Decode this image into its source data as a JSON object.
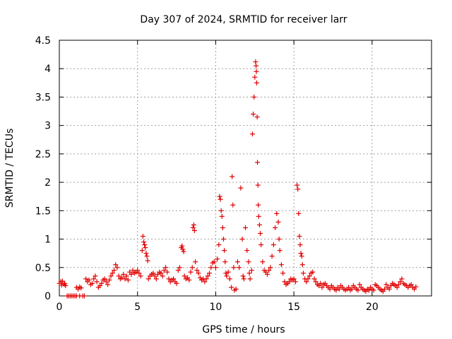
{
  "chart_data": {
    "type": "scatter",
    "title": "Day 307 of 2024, SRMTID for receiver larr",
    "xlabel": "GPS time / hours",
    "ylabel": "SRMTID / TECUs",
    "xlim": [
      0,
      23.8
    ],
    "ylim": [
      0,
      4.5
    ],
    "x_ticks": [
      "0",
      "5",
      "10",
      "15",
      "20"
    ],
    "y_ticks": [
      "0",
      "0.5",
      "1",
      "1.5",
      "2",
      "2.5",
      "3",
      "3.5",
      "4",
      "4.5"
    ],
    "grid": true,
    "marker": "plus",
    "color": "#e00000",
    "series": [
      {
        "name": "SRMTID",
        "points": [
          [
            0.0,
            0.22
          ],
          [
            0.1,
            0.25
          ],
          [
            0.15,
            0.19
          ],
          [
            0.2,
            0.26
          ],
          [
            0.3,
            0.2
          ],
          [
            0.35,
            0.22
          ],
          [
            0.4,
            0.18
          ],
          [
            0.5,
            0.0
          ],
          [
            0.6,
            0.0
          ],
          [
            0.7,
            0.0
          ],
          [
            0.8,
            0.0
          ],
          [
            0.9,
            0.0
          ],
          [
            1.0,
            0.0
          ],
          [
            1.1,
            0.0
          ],
          [
            1.3,
            0.0
          ],
          [
            1.5,
            0.0
          ],
          [
            1.6,
            0.0
          ],
          [
            1.1,
            0.15
          ],
          [
            1.2,
            0.12
          ],
          [
            1.3,
            0.16
          ],
          [
            1.4,
            0.14
          ],
          [
            1.7,
            0.3
          ],
          [
            1.8,
            0.25
          ],
          [
            1.9,
            0.28
          ],
          [
            2.0,
            0.2
          ],
          [
            2.1,
            0.22
          ],
          [
            2.2,
            0.3
          ],
          [
            2.3,
            0.35
          ],
          [
            2.4,
            0.25
          ],
          [
            2.5,
            0.15
          ],
          [
            2.6,
            0.18
          ],
          [
            2.7,
            0.22
          ],
          [
            2.8,
            0.28
          ],
          [
            2.9,
            0.3
          ],
          [
            3.0,
            0.25
          ],
          [
            3.1,
            0.2
          ],
          [
            3.2,
            0.28
          ],
          [
            3.3,
            0.35
          ],
          [
            3.4,
            0.4
          ],
          [
            3.5,
            0.45
          ],
          [
            3.6,
            0.55
          ],
          [
            3.7,
            0.5
          ],
          [
            3.8,
            0.35
          ],
          [
            3.9,
            0.3
          ],
          [
            4.0,
            0.32
          ],
          [
            4.1,
            0.38
          ],
          [
            4.2,
            0.3
          ],
          [
            4.3,
            0.35
          ],
          [
            4.4,
            0.28
          ],
          [
            4.5,
            0.42
          ],
          [
            4.6,
            0.38
          ],
          [
            4.7,
            0.45
          ],
          [
            4.8,
            0.4
          ],
          [
            4.9,
            0.42
          ],
          [
            5.0,
            0.45
          ],
          [
            5.1,
            0.4
          ],
          [
            5.2,
            0.35
          ],
          [
            5.3,
            0.8
          ],
          [
            5.35,
            1.05
          ],
          [
            5.4,
            0.95
          ],
          [
            5.45,
            0.9
          ],
          [
            5.5,
            0.85
          ],
          [
            5.55,
            0.75
          ],
          [
            5.6,
            0.7
          ],
          [
            5.65,
            0.62
          ],
          [
            5.7,
            0.3
          ],
          [
            5.8,
            0.35
          ],
          [
            5.9,
            0.38
          ],
          [
            6.0,
            0.4
          ],
          [
            6.1,
            0.35
          ],
          [
            6.2,
            0.3
          ],
          [
            6.3,
            0.38
          ],
          [
            6.4,
            0.42
          ],
          [
            6.5,
            0.4
          ],
          [
            6.6,
            0.35
          ],
          [
            6.7,
            0.45
          ],
          [
            6.8,
            0.5
          ],
          [
            6.9,
            0.42
          ],
          [
            7.0,
            0.3
          ],
          [
            7.1,
            0.25
          ],
          [
            7.2,
            0.28
          ],
          [
            7.3,
            0.3
          ],
          [
            7.4,
            0.25
          ],
          [
            7.5,
            0.22
          ],
          [
            7.6,
            0.45
          ],
          [
            7.7,
            0.5
          ],
          [
            7.8,
            0.85
          ],
          [
            7.85,
            0.88
          ],
          [
            7.9,
            0.82
          ],
          [
            7.95,
            0.78
          ],
          [
            8.0,
            0.35
          ],
          [
            8.1,
            0.3
          ],
          [
            8.2,
            0.32
          ],
          [
            8.3,
            0.28
          ],
          [
            8.4,
            0.42
          ],
          [
            8.5,
            0.5
          ],
          [
            8.55,
            1.2
          ],
          [
            8.6,
            1.25
          ],
          [
            8.65,
            1.15
          ],
          [
            8.7,
            0.6
          ],
          [
            8.8,
            0.45
          ],
          [
            8.9,
            0.4
          ],
          [
            9.0,
            0.32
          ],
          [
            9.1,
            0.28
          ],
          [
            9.2,
            0.3
          ],
          [
            9.3,
            0.25
          ],
          [
            9.4,
            0.3
          ],
          [
            9.5,
            0.35
          ],
          [
            9.6,
            0.4
          ],
          [
            9.7,
            0.5
          ],
          [
            9.8,
            0.58
          ],
          [
            9.9,
            0.6
          ],
          [
            10.0,
            0.5
          ],
          [
            10.1,
            0.65
          ],
          [
            10.2,
            0.9
          ],
          [
            10.25,
            1.75
          ],
          [
            10.3,
            1.7
          ],
          [
            10.35,
            1.5
          ],
          [
            10.4,
            1.4
          ],
          [
            10.45,
            1.2
          ],
          [
            10.5,
            1.0
          ],
          [
            10.55,
            0.8
          ],
          [
            10.6,
            0.6
          ],
          [
            10.65,
            0.4
          ],
          [
            10.7,
            0.35
          ],
          [
            10.8,
            0.42
          ],
          [
            10.9,
            0.3
          ],
          [
            11.0,
            0.15
          ],
          [
            11.05,
            2.1
          ],
          [
            11.1,
            1.6
          ],
          [
            11.15,
            0.5
          ],
          [
            11.2,
            0.1
          ],
          [
            11.3,
            0.12
          ],
          [
            11.4,
            0.6
          ],
          [
            11.5,
            0.5
          ],
          [
            11.6,
            1.9
          ],
          [
            11.7,
            1.0
          ],
          [
            11.75,
            0.35
          ],
          [
            11.8,
            0.3
          ],
          [
            11.9,
            1.2
          ],
          [
            12.0,
            0.8
          ],
          [
            12.1,
            0.6
          ],
          [
            12.15,
            0.4
          ],
          [
            12.2,
            0.3
          ],
          [
            12.3,
            0.45
          ],
          [
            12.35,
            2.85
          ],
          [
            12.4,
            3.2
          ],
          [
            12.45,
            3.5
          ],
          [
            12.5,
            3.85
          ],
          [
            12.55,
            4.12
          ],
          [
            12.58,
            4.05
          ],
          [
            12.6,
            3.95
          ],
          [
            12.62,
            3.75
          ],
          [
            12.65,
            3.15
          ],
          [
            12.67,
            2.35
          ],
          [
            12.7,
            1.95
          ],
          [
            12.72,
            1.6
          ],
          [
            12.75,
            1.4
          ],
          [
            12.8,
            1.25
          ],
          [
            12.85,
            1.1
          ],
          [
            12.9,
            0.9
          ],
          [
            13.0,
            0.6
          ],
          [
            13.1,
            0.45
          ],
          [
            13.2,
            0.42
          ],
          [
            13.3,
            0.38
          ],
          [
            13.4,
            0.45
          ],
          [
            13.5,
            0.5
          ],
          [
            13.6,
            0.7
          ],
          [
            13.7,
            0.9
          ],
          [
            13.8,
            1.2
          ],
          [
            13.9,
            1.45
          ],
          [
            14.0,
            1.3
          ],
          [
            14.05,
            1.0
          ],
          [
            14.1,
            0.8
          ],
          [
            14.2,
            0.55
          ],
          [
            14.3,
            0.4
          ],
          [
            14.4,
            0.25
          ],
          [
            14.5,
            0.2
          ],
          [
            14.6,
            0.22
          ],
          [
            14.7,
            0.25
          ],
          [
            14.8,
            0.3
          ],
          [
            14.9,
            0.28
          ],
          [
            15.0,
            0.3
          ],
          [
            15.1,
            0.25
          ],
          [
            15.2,
            1.95
          ],
          [
            15.25,
            1.88
          ],
          [
            15.3,
            1.45
          ],
          [
            15.35,
            1.05
          ],
          [
            15.4,
            0.9
          ],
          [
            15.45,
            0.75
          ],
          [
            15.5,
            0.7
          ],
          [
            15.55,
            0.55
          ],
          [
            15.6,
            0.4
          ],
          [
            15.7,
            0.3
          ],
          [
            15.8,
            0.25
          ],
          [
            15.9,
            0.3
          ],
          [
            16.0,
            0.35
          ],
          [
            16.1,
            0.4
          ],
          [
            16.2,
            0.42
          ],
          [
            16.3,
            0.3
          ],
          [
            16.4,
            0.25
          ],
          [
            16.5,
            0.2
          ],
          [
            16.6,
            0.18
          ],
          [
            16.7,
            0.22
          ],
          [
            16.8,
            0.15
          ],
          [
            16.9,
            0.2
          ],
          [
            17.0,
            0.22
          ],
          [
            17.1,
            0.18
          ],
          [
            17.2,
            0.15
          ],
          [
            17.3,
            0.12
          ],
          [
            17.4,
            0.18
          ],
          [
            17.5,
            0.15
          ],
          [
            17.6,
            0.12
          ],
          [
            17.7,
            0.1
          ],
          [
            17.8,
            0.15
          ],
          [
            17.9,
            0.12
          ],
          [
            18.0,
            0.18
          ],
          [
            18.1,
            0.15
          ],
          [
            18.2,
            0.12
          ],
          [
            18.3,
            0.1
          ],
          [
            18.4,
            0.12
          ],
          [
            18.5,
            0.15
          ],
          [
            18.6,
            0.1
          ],
          [
            18.7,
            0.12
          ],
          [
            18.8,
            0.18
          ],
          [
            18.9,
            0.15
          ],
          [
            19.0,
            0.12
          ],
          [
            19.1,
            0.1
          ],
          [
            19.2,
            0.2
          ],
          [
            19.3,
            0.15
          ],
          [
            19.4,
            0.12
          ],
          [
            19.5,
            0.1
          ],
          [
            19.6,
            0.08
          ],
          [
            19.7,
            0.12
          ],
          [
            19.8,
            0.1
          ],
          [
            19.9,
            0.15
          ],
          [
            20.0,
            0.12
          ],
          [
            20.1,
            0.1
          ],
          [
            20.2,
            0.2
          ],
          [
            20.3,
            0.18
          ],
          [
            20.4,
            0.15
          ],
          [
            20.5,
            0.12
          ],
          [
            20.6,
            0.1
          ],
          [
            20.7,
            0.08
          ],
          [
            20.8,
            0.12
          ],
          [
            20.9,
            0.2
          ],
          [
            21.0,
            0.15
          ],
          [
            21.1,
            0.12
          ],
          [
            21.2,
            0.18
          ],
          [
            21.3,
            0.22
          ],
          [
            21.4,
            0.2
          ],
          [
            21.5,
            0.18
          ],
          [
            21.6,
            0.15
          ],
          [
            21.7,
            0.2
          ],
          [
            21.8,
            0.25
          ],
          [
            21.9,
            0.3
          ],
          [
            22.0,
            0.22
          ],
          [
            22.1,
            0.2
          ],
          [
            22.2,
            0.18
          ],
          [
            22.3,
            0.15
          ],
          [
            22.4,
            0.18
          ],
          [
            22.5,
            0.2
          ],
          [
            22.6,
            0.15
          ],
          [
            22.7,
            0.12
          ],
          [
            22.8,
            0.16
          ]
        ]
      }
    ]
  }
}
